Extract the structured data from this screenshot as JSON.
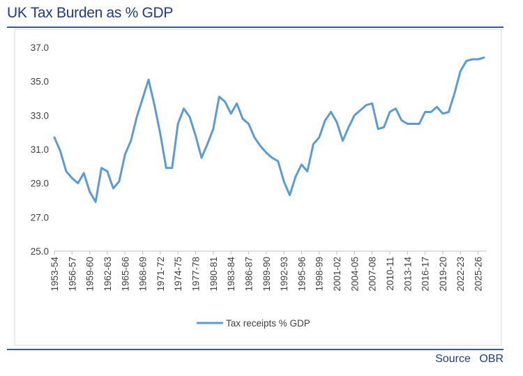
{
  "title": "UK Tax Burden as % GDP",
  "source": "Source OBR",
  "chart_data": {
    "type": "line",
    "title": "",
    "xlabel": "",
    "ylabel": "",
    "ylim": [
      25.0,
      37.0
    ],
    "yticks": [
      "25.0",
      "27.0",
      "29.0",
      "31.0",
      "33.0",
      "35.0",
      "37.0"
    ],
    "xticks": [
      "1953-54",
      "1956-57",
      "1959-60",
      "1962-63",
      "1965-66",
      "1968-69",
      "1971-72",
      "1974-75",
      "1977-78",
      "1980-81",
      "1983-84",
      "1986-87",
      "1989-90",
      "1992-93",
      "1995-96",
      "1998-99",
      "2001-02",
      "2004-05",
      "2007-08",
      "2010-11",
      "2013-14",
      "2016-17",
      "2019-20",
      "2022-23",
      "2025-26"
    ],
    "grid": false,
    "legend_position": "bottom",
    "color": "#5b9bd5",
    "series": [
      {
        "name": "Tax receipts % GDP",
        "values": [
          31.7,
          30.9,
          29.7,
          29.3,
          29.0,
          29.6,
          28.5,
          27.9,
          29.9,
          29.7,
          28.7,
          29.1,
          30.7,
          31.5,
          32.9,
          34.0,
          35.1,
          33.6,
          31.9,
          29.9,
          29.9,
          32.5,
          33.4,
          32.9,
          31.8,
          30.5,
          31.3,
          32.2,
          34.1,
          33.8,
          33.1,
          33.7,
          32.8,
          32.5,
          31.7,
          31.2,
          30.8,
          30.5,
          30.3,
          29.1,
          28.3,
          29.4,
          30.1,
          29.7,
          31.3,
          31.7,
          32.7,
          33.2,
          32.6,
          31.5,
          32.3,
          33.0,
          33.3,
          33.6,
          33.7,
          32.2,
          32.3,
          33.2,
          33.4,
          32.7,
          32.5,
          32.5,
          32.5,
          33.2,
          33.2,
          33.5,
          33.1,
          33.2,
          34.3,
          35.6,
          36.2,
          36.3,
          36.3,
          36.4
        ]
      }
    ]
  }
}
